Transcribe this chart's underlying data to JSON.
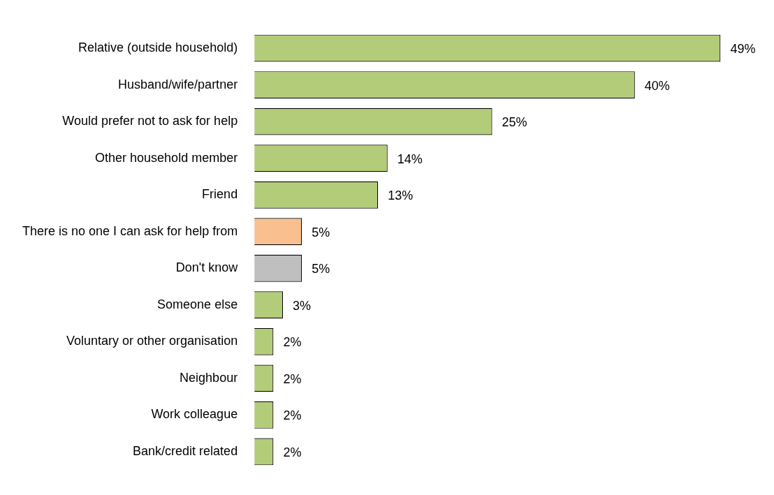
{
  "chart_data": {
    "type": "bar",
    "orientation": "horizontal",
    "categories": [
      "Relative (outside household)",
      "Husband/wife/partner",
      "Would prefer not to ask for help",
      "Other household member",
      "Friend",
      "There is no one I can ask for help from",
      "Don't know",
      "Someone else",
      "Voluntary or other organisation",
      "Neighbour",
      "Work colleague",
      "Bank/credit related"
    ],
    "values": [
      49,
      40,
      25,
      14,
      13,
      5,
      5,
      3,
      2,
      2,
      2,
      2
    ],
    "colors": [
      "#b3cc7a",
      "#b3cc7a",
      "#b3cc7a",
      "#b3cc7a",
      "#b3cc7a",
      "#f9bf8f",
      "#bfbfbf",
      "#b3cc7a",
      "#b3cc7a",
      "#b3cc7a",
      "#b3cc7a",
      "#b3cc7a"
    ],
    "value_labels": [
      "49%",
      "40%",
      "25%",
      "14%",
      "13%",
      "5%",
      "5%",
      "3%",
      "2%",
      "2%",
      "2%",
      "2%"
    ],
    "grid": false,
    "legend": false
  }
}
